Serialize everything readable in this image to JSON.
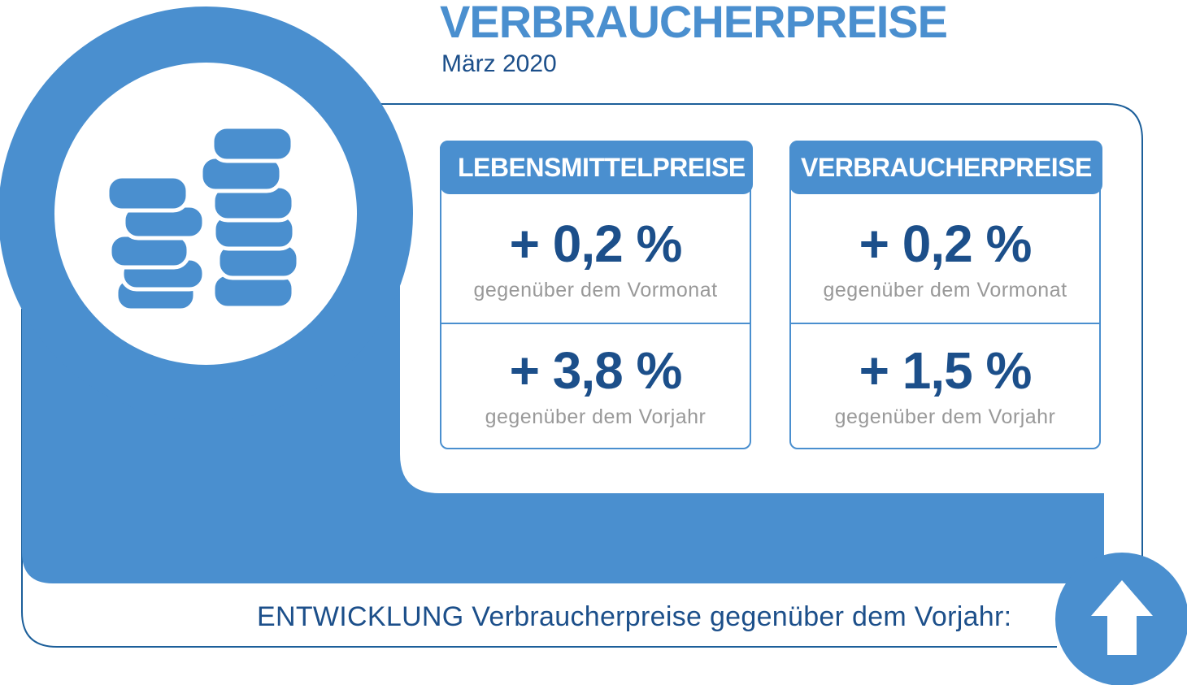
{
  "header": {
    "title": "VERBRAUCHERPREISE",
    "subtitle": "März 2020"
  },
  "cards": [
    {
      "heading": "LEBENSMITTELPREISE",
      "monthly_value": "+ 0,2 %",
      "monthly_caption": "gegenüber dem Vormonat",
      "yearly_value": "+ 3,8 %",
      "yearly_caption": "gegenüber dem Vorjahr"
    },
    {
      "heading": "VERBRAUCHERPREISE",
      "monthly_value": "+ 0,2 %",
      "monthly_caption": "gegenüber dem Vormonat",
      "yearly_value": "+ 1,5 %",
      "yearly_caption": "gegenüber dem Vorjahr"
    }
  ],
  "footer": {
    "trend_text": "ENTWICKLUNG Verbraucherpreise gegenüber dem Vorjahr:",
    "trend_direction": "up"
  },
  "icons": {
    "coins": "coin-stack-icon",
    "trend": "arrow-up-icon"
  },
  "colors": {
    "accent": "#4a8fcf",
    "dark_blue": "#1c4f8a",
    "caption_gray": "#999999"
  }
}
